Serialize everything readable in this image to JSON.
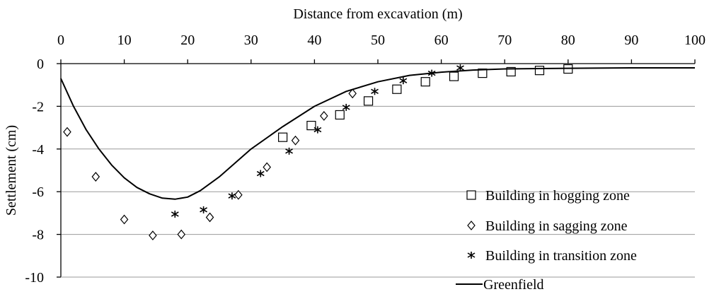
{
  "chart_data": {
    "type": "scatter",
    "xlabel": "Distance from excavation (m)",
    "ylabel": "Settlement (cm)",
    "xlim": [
      0,
      100
    ],
    "ylim": [
      -10,
      0
    ],
    "x_ticks": [
      0,
      10,
      20,
      30,
      40,
      50,
      60,
      70,
      80,
      90,
      100
    ],
    "y_ticks": [
      0,
      -2,
      -4,
      -6,
      -8,
      -10
    ],
    "x_tick_labels": [
      "0",
      "10",
      "20",
      "30",
      "40",
      "50",
      "60",
      "70",
      "80",
      "90",
      "100"
    ],
    "y_tick_labels": [
      "0",
      "-2",
      "-4",
      "-6",
      "-8",
      "-10"
    ],
    "x_axis_position": "top",
    "grid": "horizontal",
    "legend_position": "bottom-right",
    "series": [
      {
        "name": "Building in hogging zone",
        "marker": "square",
        "x": [
          35,
          39.5,
          44,
          48.5,
          53,
          57.5,
          62,
          66.5,
          71,
          75.5,
          80
        ],
        "y": [
          -3.45,
          -2.9,
          -2.4,
          -1.75,
          -1.2,
          -0.85,
          -0.6,
          -0.45,
          -0.38,
          -0.32,
          -0.25
        ]
      },
      {
        "name": "Building in sagging zone",
        "marker": "diamond",
        "x": [
          1,
          5.5,
          10,
          14.5,
          19,
          23.5,
          28,
          32.5,
          37,
          41.5,
          46
        ],
        "y": [
          -3.2,
          -5.3,
          -7.3,
          -8.05,
          -8.0,
          -7.2,
          -6.15,
          -4.85,
          -3.6,
          -2.45,
          -1.4
        ]
      },
      {
        "name": "Building in transition zone",
        "marker": "asterisk",
        "x": [
          18,
          22.5,
          27,
          31.5,
          36,
          40.5,
          45,
          49.5,
          54,
          58.5,
          63
        ],
        "y": [
          -7.05,
          -6.85,
          -6.2,
          -5.15,
          -4.1,
          -3.1,
          -2.05,
          -1.3,
          -0.8,
          -0.45,
          -0.2
        ]
      },
      {
        "name": "Greenfield",
        "marker": "line",
        "x": [
          0,
          2,
          4,
          6,
          8,
          10,
          12,
          14,
          16,
          18,
          20,
          22,
          25,
          30,
          35,
          40,
          45,
          50,
          55,
          60,
          65,
          70,
          80,
          90,
          100
        ],
        "y": [
          -0.7,
          -2.0,
          -3.1,
          -4.0,
          -4.75,
          -5.35,
          -5.8,
          -6.1,
          -6.3,
          -6.35,
          -6.25,
          -5.95,
          -5.3,
          -4.0,
          -2.95,
          -2.0,
          -1.3,
          -0.85,
          -0.55,
          -0.4,
          -0.3,
          -0.25,
          -0.22,
          -0.2,
          -0.2
        ]
      }
    ]
  }
}
